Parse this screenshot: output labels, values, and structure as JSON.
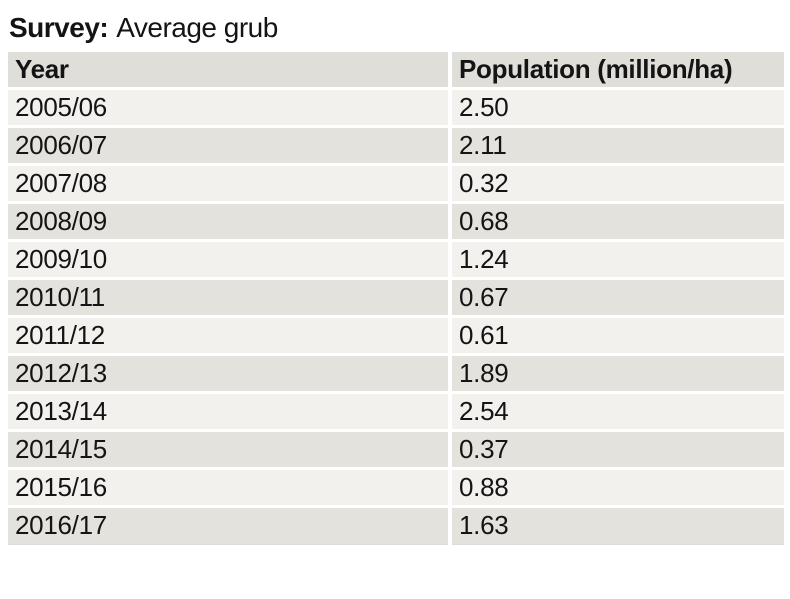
{
  "title": {
    "prefix": "Survey:",
    "text": "Average grub"
  },
  "table": {
    "headers": {
      "year": "Year",
      "population": "Population (million/ha)"
    },
    "rows": [
      {
        "year": "2005/06",
        "value": "2.50"
      },
      {
        "year": "2006/07",
        "value": "2.11"
      },
      {
        "year": "2007/08",
        "value": "0.32"
      },
      {
        "year": "2008/09",
        "value": "0.68"
      },
      {
        "year": "2009/10",
        "value": "1.24"
      },
      {
        "year": "2010/11",
        "value": "0.67"
      },
      {
        "year": "2011/12",
        "value": "0.61"
      },
      {
        "year": "2012/13",
        "value": "1.89"
      },
      {
        "year": "2013/14",
        "value": "2.54"
      },
      {
        "year": "2014/15",
        "value": "0.37"
      },
      {
        "year": "2015/16",
        "value": "0.88"
      },
      {
        "year": "2016/17",
        "value": "1.63"
      }
    ]
  },
  "colors": {
    "row_light": "#f2f1ed",
    "row_dark": "#e4e2dd",
    "header_bg": "#dfded9",
    "text": "#141414",
    "background": "#ffffff"
  },
  "chart_data": {
    "type": "table",
    "title": "Survey: Average grub",
    "columns": [
      "Year",
      "Population (million/ha)"
    ],
    "categories": [
      "2005/06",
      "2006/07",
      "2007/08",
      "2008/09",
      "2009/10",
      "2010/11",
      "2011/12",
      "2012/13",
      "2013/14",
      "2014/15",
      "2015/16",
      "2016/17"
    ],
    "values": [
      2.5,
      2.11,
      0.32,
      0.68,
      1.24,
      0.67,
      0.61,
      1.89,
      2.54,
      0.37,
      0.88,
      1.63
    ]
  }
}
